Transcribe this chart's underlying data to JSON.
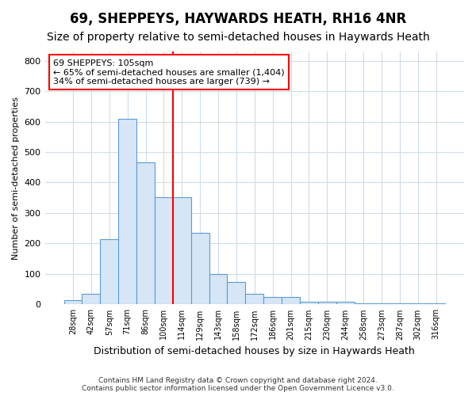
{
  "title": "69, SHEPPEYS, HAYWARDS HEATH, RH16 4NR",
  "subtitle": "Size of property relative to semi-detached houses in Haywards Heath",
  "xlabel": "Distribution of semi-detached houses by size in Haywards Heath",
  "ylabel": "Number of semi-detached properties",
  "footnote1": "Contains HM Land Registry data © Crown copyright and database right 2024.",
  "footnote2": "Contains public sector information licensed under the Open Government Licence v3.0.",
  "categories": [
    "28sqm",
    "42sqm",
    "57sqm",
    "71sqm",
    "86sqm",
    "100sqm",
    "114sqm",
    "129sqm",
    "143sqm",
    "158sqm",
    "172sqm",
    "186sqm",
    "201sqm",
    "215sqm",
    "230sqm",
    "244sqm",
    "258sqm",
    "273sqm",
    "287sqm",
    "302sqm",
    "316sqm"
  ],
  "values": [
    15,
    35,
    215,
    610,
    465,
    352,
    352,
    235,
    100,
    75,
    35,
    25,
    25,
    10,
    10,
    10,
    5,
    3,
    3,
    5,
    3
  ],
  "bar_color": "#d6e6f7",
  "bar_edge_color": "#5b9bd5",
  "vline_x_index": 5,
  "vline_color": "red",
  "annotation_title": "69 SHEPPEYS: 105sqm",
  "annotation_smaller": "← 65% of semi-detached houses are smaller (1,404)",
  "annotation_larger": "34% of semi-detached houses are larger (739) →",
  "annotation_box_color": "white",
  "annotation_box_edge_color": "red",
  "ylim": [
    0,
    830
  ],
  "yticks": [
    0,
    100,
    200,
    300,
    400,
    500,
    600,
    700,
    800
  ],
  "background_color": "#ffffff",
  "grid_color": "#d0dce8",
  "title_fontsize": 12,
  "subtitle_fontsize": 10
}
